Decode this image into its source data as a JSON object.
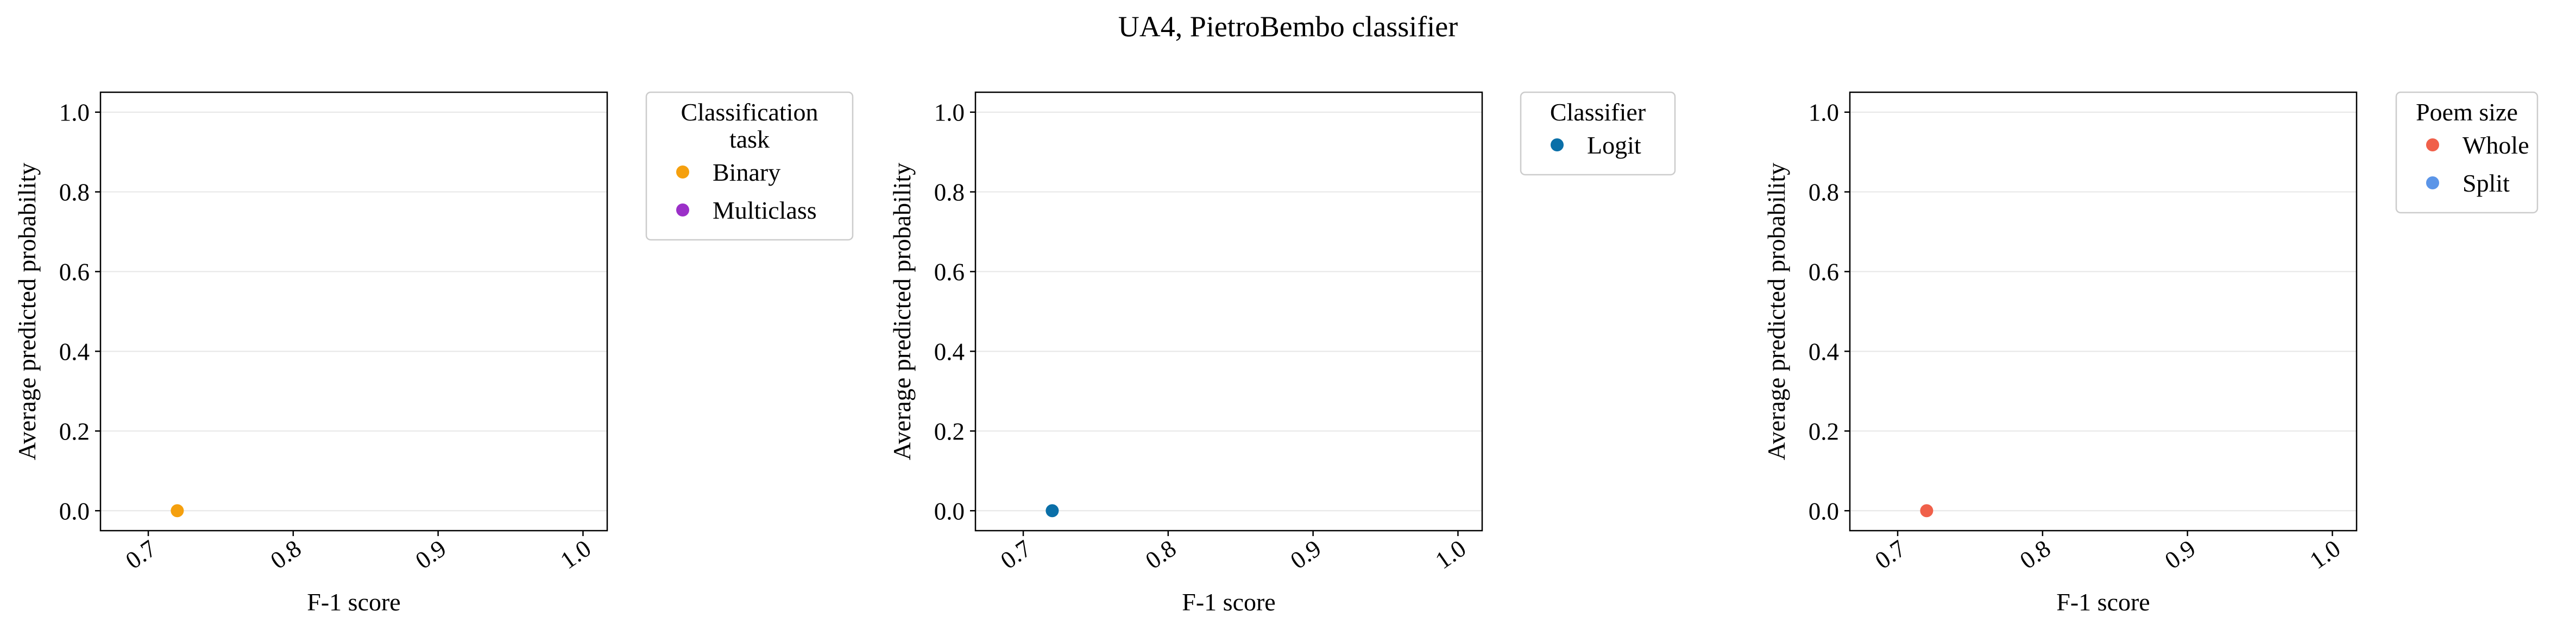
{
  "figure": {
    "title": "UA4, PietroBembo classifier"
  },
  "chart_data": [
    {
      "type": "scatter",
      "xlabel": "F-1 score",
      "ylabel": "Average predicted probability",
      "xlim": [
        0.667,
        1.0167
      ],
      "ylim": [
        -0.05,
        1.05
      ],
      "xticks": [
        "0.7",
        "0.8",
        "0.9",
        "1.0"
      ],
      "yticks": [
        "0.0",
        "0.2",
        "0.4",
        "0.6",
        "0.8",
        "1.0"
      ],
      "grid": "horizontal",
      "legend": {
        "title": "Classification\ntask",
        "placement": "outside-right-top",
        "entries": [
          {
            "label": "Binary",
            "color": "#F5A00E"
          },
          {
            "label": "Multiclass",
            "color": "#9B30C8"
          }
        ]
      },
      "series": [
        {
          "name": "Binary",
          "color": "#F5A00E",
          "points": [
            {
              "x": 0.72,
              "y": 0.0
            }
          ]
        }
      ]
    },
    {
      "type": "scatter",
      "xlabel": "F-1 score",
      "ylabel": "Average predicted probability",
      "xlim": [
        0.667,
        1.0167
      ],
      "ylim": [
        -0.05,
        1.05
      ],
      "xticks": [
        "0.7",
        "0.8",
        "0.9",
        "1.0"
      ],
      "yticks": [
        "0.0",
        "0.2",
        "0.4",
        "0.6",
        "0.8",
        "1.0"
      ],
      "grid": "horizontal",
      "legend": {
        "title": "Classifier",
        "placement": "outside-right-top",
        "entries": [
          {
            "label": "Logit",
            "color": "#0A6FA8"
          }
        ]
      },
      "series": [
        {
          "name": "Logit",
          "color": "#0A6FA8",
          "points": [
            {
              "x": 0.72,
              "y": 0.0
            }
          ]
        }
      ]
    },
    {
      "type": "scatter",
      "xlabel": "F-1 score",
      "ylabel": "Average predicted probability",
      "xlim": [
        0.667,
        1.0167
      ],
      "ylim": [
        -0.05,
        1.05
      ],
      "xticks": [
        "0.7",
        "0.8",
        "0.9",
        "1.0"
      ],
      "yticks": [
        "0.0",
        "0.2",
        "0.4",
        "0.6",
        "0.8",
        "1.0"
      ],
      "grid": "horizontal",
      "legend": {
        "title": "Poem size",
        "placement": "outside-right-top",
        "entries": [
          {
            "label": "Whole",
            "color": "#F0604A"
          },
          {
            "label": "Split",
            "color": "#5B95E8"
          }
        ]
      },
      "series": [
        {
          "name": "Whole",
          "color": "#F0604A",
          "points": [
            {
              "x": 0.72,
              "y": 0.0
            }
          ]
        }
      ]
    }
  ]
}
